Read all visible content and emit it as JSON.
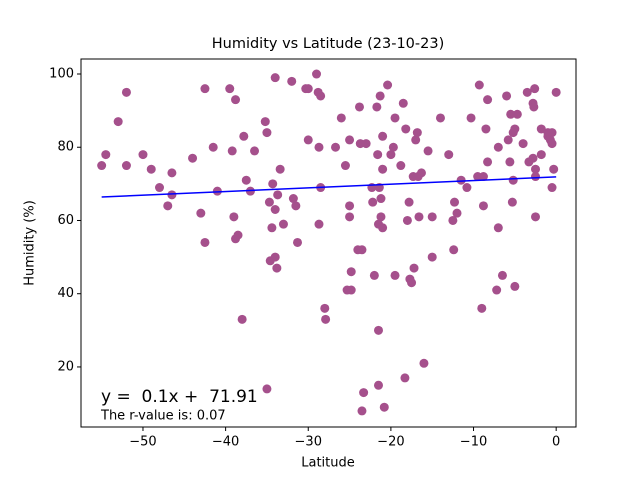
{
  "chart_data": {
    "type": "scatter",
    "title": "Humidity vs Latitude (23-10-23)",
    "x_label": "Latitude",
    "y_label": "Humidity (%)",
    "annotations": [
      "y =  0.1x +  71.91",
      "The r-value is: 0.07"
    ],
    "annotation_colors": [
      "#000000",
      "#0000ff"
    ],
    "color": "#a5508c",
    "regression": {
      "slope": 0.1,
      "intercept": 71.91,
      "color": "#0000ff"
    },
    "xlim": [
      -57.5,
      2.4
    ],
    "ylim": [
      3.6,
      104.1
    ],
    "xticks": [
      {
        "value": -50,
        "label": "−50"
      },
      {
        "value": -40,
        "label": "−40"
      },
      {
        "value": -30,
        "label": "−30"
      },
      {
        "value": -20,
        "label": "−20"
      },
      {
        "value": -10,
        "label": "−10"
      },
      0
    ],
    "yticks": [
      20,
      40,
      60,
      80,
      100
    ],
    "x": [
      -55,
      -54.5,
      -53,
      -52,
      -52,
      -50,
      -49,
      -48,
      -47,
      -46.5,
      -46.5,
      -44,
      -43,
      -42.5,
      -42.5,
      -41.5,
      -41,
      -39.5,
      -39.2,
      -39,
      -38.8,
      -38.8,
      -38.5,
      -38,
      -37.8,
      -37.5,
      -37,
      -36.5,
      -35.2,
      -35,
      -35,
      -34.7,
      -34.6,
      -34.4,
      -34.3,
      -34,
      -34,
      -34,
      -33.8,
      -33.7,
      -33.4,
      -33,
      -32,
      -31.8,
      -31.5,
      -31.3,
      -30.3,
      -30,
      -30,
      -29,
      -28.8,
      -28.5,
      -28.7,
      -28.7,
      -28.5,
      -28,
      -27.9,
      -26.7,
      -26,
      -25.5,
      -25.3,
      -25,
      -25,
      -25,
      -24.8,
      -24.8,
      -24,
      -23.8,
      -23.7,
      -23.5,
      -23.5,
      -23.3,
      -23,
      -22.3,
      -22.2,
      -22,
      -21.7,
      -21.6,
      -21.5,
      -21.5,
      -21.5,
      -21.4,
      -21.3,
      -21.2,
      -21.2,
      -21,
      -21,
      -21,
      -20.8,
      -20.4,
      -20,
      -19.7,
      -19.5,
      -19.5,
      -18.8,
      -18.5,
      -18.3,
      -18.2,
      -18,
      -17.8,
      -17.7,
      -17.5,
      -17.3,
      -17.2,
      -17,
      -16.8,
      -16.7,
      -16.6,
      -16.3,
      -16,
      -15.5,
      -15,
      -15,
      -14,
      -13,
      -12.5,
      -12.4,
      -12.3,
      -12,
      -11.5,
      -10.8,
      -10.3,
      -9.5,
      -9.3,
      -9,
      -8.8,
      -8.8,
      -8.5,
      -8.3,
      -8.3,
      -7.2,
      -7,
      -7,
      -6.5,
      -6,
      -5.8,
      -5.6,
      -5.5,
      -5.3,
      -5.2,
      -5.2,
      -5,
      -4.7,
      -5,
      -4,
      -3.5,
      -3.3,
      -2.8,
      -2.8,
      -2.7,
      -2.6,
      -2.5,
      -2.5,
      -2.5,
      -1.8,
      -1.8,
      -1,
      -1,
      -0.7,
      -0.5,
      -0.5,
      -0.5,
      -0.3,
      0
    ],
    "y": [
      75,
      78,
      87,
      95,
      75,
      78,
      74,
      69,
      64,
      73,
      67,
      77,
      62,
      54,
      96,
      80,
      68,
      96,
      79,
      61,
      93,
      55,
      56,
      33,
      83,
      71,
      68,
      79,
      87,
      84,
      14,
      65,
      49,
      58,
      70,
      99,
      63,
      50,
      47,
      67,
      74,
      59,
      98,
      66,
      64,
      54,
      96,
      96,
      82,
      100,
      95,
      94,
      80,
      59,
      69,
      36,
      33,
      80,
      88,
      75,
      41,
      82,
      64,
      61,
      46,
      41,
      52,
      91,
      81,
      8,
      52,
      13,
      81,
      69,
      65,
      45,
      91,
      78,
      30,
      59,
      15,
      69,
      94,
      61,
      66,
      83,
      74,
      58,
      9,
      97,
      78,
      80,
      45,
      88,
      75,
      92,
      17,
      85,
      60,
      65,
      44,
      43,
      72,
      47,
      82,
      84,
      72,
      61,
      73,
      21,
      79,
      61,
      50,
      88,
      78,
      60,
      52,
      65,
      62,
      71,
      69,
      88,
      72,
      97,
      36,
      64,
      72,
      85,
      93,
      76,
      41,
      80,
      58,
      45,
      94,
      82,
      76,
      89,
      65,
      84,
      71,
      85,
      89,
      42,
      81,
      95,
      76,
      77,
      92,
      91,
      96,
      61,
      74,
      72,
      85,
      78,
      83,
      84,
      82,
      84,
      69,
      81,
      74,
      95
    ]
  }
}
